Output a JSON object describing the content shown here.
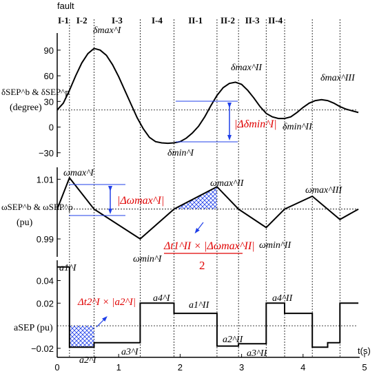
{
  "chart_data": {
    "type": "line",
    "x_axis": {
      "label": "t(s)",
      "ticks": [
        "0",
        "1",
        "2",
        "3",
        "4",
        "5"
      ],
      "range": [
        0,
        5
      ]
    },
    "top_label": "fault",
    "stages": [
      "I-1",
      "I-2",
      "I-3",
      "I-4",
      "II-1",
      "II-2",
      "II-3",
      "II-4"
    ],
    "vertical_marker_times": [
      0.2,
      0.6,
      1.35,
      1.9,
      2.6,
      2.95,
      3.4,
      3.7,
      4.15,
      4.6
    ],
    "colors": {
      "line": "#000000",
      "blue": "#1f3fe8",
      "red": "#e00000"
    },
    "panels": [
      {
        "id": "delta",
        "ylabel": [
          "δSEP^b & δSEP^p",
          "(degree)"
        ],
        "yticks": [
          "90",
          "60",
          "30",
          "0",
          "−30"
        ],
        "ylim": [
          -35,
          110
        ],
        "reference_y": 20,
        "x": [
          0,
          0.1,
          0.2,
          0.3,
          0.4,
          0.5,
          0.6,
          0.7,
          0.8,
          0.9,
          1.0,
          1.1,
          1.2,
          1.3,
          1.4,
          1.5,
          1.6,
          1.7,
          1.8,
          1.9,
          2.0,
          2.1,
          2.2,
          2.3,
          2.4,
          2.5,
          2.6,
          2.7,
          2.8,
          2.9,
          3.0,
          3.1,
          3.2,
          3.3,
          3.4,
          3.5,
          3.6,
          3.7,
          3.8,
          3.9,
          4.0,
          4.1,
          4.2,
          4.3,
          4.4,
          4.5,
          4.6,
          4.7,
          4.8,
          4.9
        ],
        "y": [
          20,
          28,
          43,
          60,
          75,
          86,
          92,
          90,
          84,
          73,
          59,
          43,
          27,
          11,
          -2,
          -12,
          -17,
          -18.5,
          -19,
          -18.5,
          -17,
          -13,
          -7,
          1,
          12,
          25,
          37,
          46,
          51,
          52.5,
          50,
          43,
          34,
          24,
          16,
          12,
          10,
          10,
          12,
          17,
          23,
          28,
          31,
          32,
          31,
          28,
          24,
          21,
          19,
          17
        ]
      },
      {
        "id": "omega",
        "ylabel": [
          "ωSEP^b & ωSEP^p",
          "(pu)"
        ],
        "yticks": [
          "1.01",
          "0.99"
        ],
        "ylim": [
          0.984,
          1.014
        ],
        "reference_y": 1.0,
        "x": [
          0,
          0.2,
          0.6,
          1.35,
          1.9,
          2.6,
          2.95,
          3.4,
          3.7,
          4.15,
          4.6,
          4.9
        ],
        "y": [
          1.0,
          1.0105,
          1.0,
          0.99,
          1.0,
          1.0075,
          1.0,
          0.9938,
          1.0,
          1.0043,
          0.9965,
          1.0
        ]
      },
      {
        "id": "accel",
        "ylabel": [
          "aSEP (pu)"
        ],
        "yticks": [
          "0.04",
          "0.02",
          "−0.02"
        ],
        "ylim": [
          -0.028,
          0.058
        ],
        "reference_y": 0.0,
        "x": [
          0,
          0.2,
          0.2,
          0.6,
          0.6,
          1.35,
          1.35,
          1.9,
          1.9,
          2.6,
          2.6,
          2.95,
          2.95,
          3.4,
          3.4,
          3.7,
          3.7,
          4.15,
          4.15,
          4.4,
          4.4,
          4.6,
          4.6,
          4.9
        ],
        "y": [
          0.052,
          0.052,
          -0.019,
          -0.019,
          -0.015,
          -0.015,
          0.02,
          0.02,
          0.011,
          0.011,
          -0.018,
          -0.018,
          -0.016,
          -0.016,
          0.02,
          0.02,
          0.011,
          0.011,
          -0.019,
          -0.019,
          -0.015,
          -0.015,
          0.02,
          0.02
        ]
      }
    ],
    "annotations": {
      "delta_max_1": "δmax^I",
      "delta_min_1": "δmin^I",
      "delta_max_2": "δmax^II",
      "delta_min_2": "δmin^II",
      "delta_max_3": "δmax^III",
      "delta_diff": "|Δδmin^I|",
      "omega_max_1": "ωmax^I",
      "omega_min_1": "ωmin^I",
      "omega_max_2": "ωmax^II",
      "omega_min_2": "ωmin^II",
      "omega_max_3": "ωmax^III",
      "omega_diff": "|Δωmax^I|",
      "area_formula_num": "Δt1^II × |Δωmax^II|",
      "area_formula_den": "2",
      "a1_1": "a1^I",
      "a2_1": "a2^I",
      "a3_1": "a3^I",
      "a4_1": "a4^I",
      "a1_2": "a1^II",
      "a2_2": "a2^II",
      "a3_2": "a3^II",
      "a4_2": "a4^II",
      "area_product": "Δt2^I × |a2^I|"
    }
  }
}
